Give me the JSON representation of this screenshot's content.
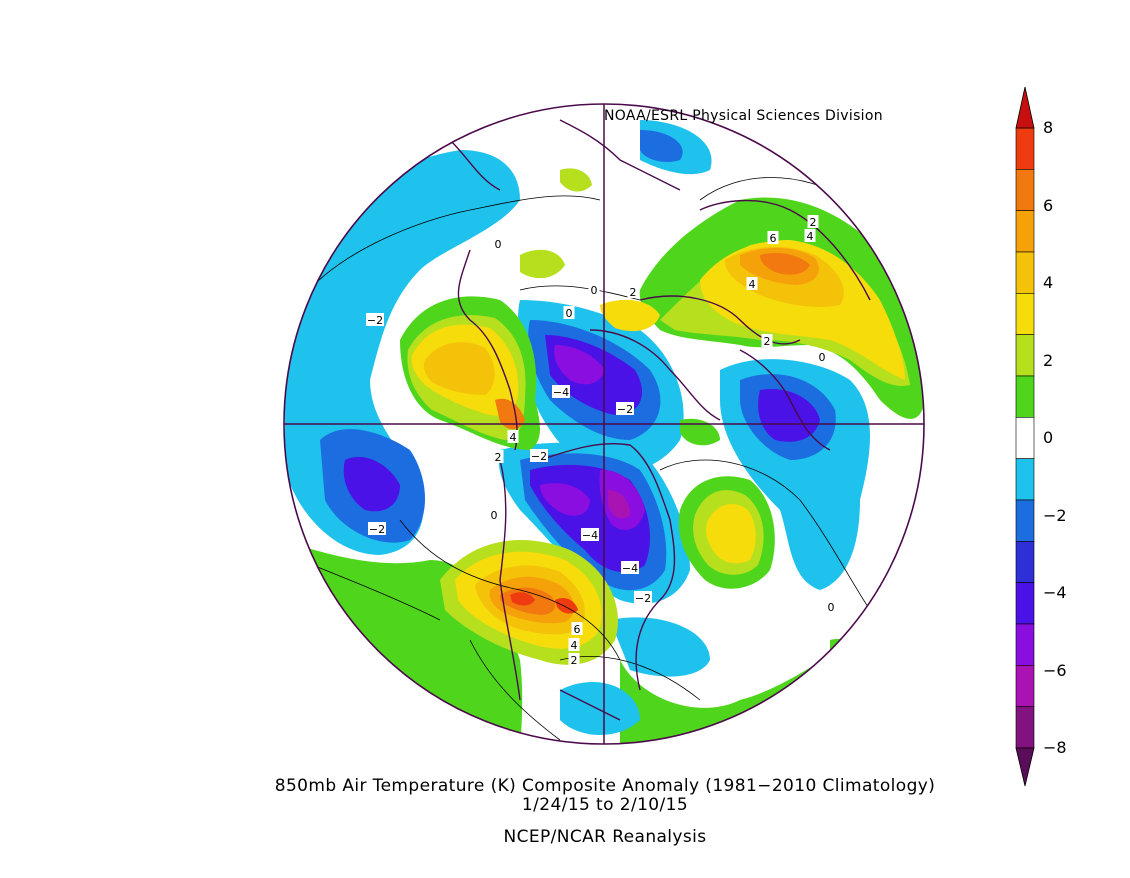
{
  "credit": "NOAA/ESRL Physical Sciences Division",
  "caption": {
    "title": "850mb Air Temperature (K) Composite Anomaly (1981−2010 Climatology)",
    "dates": "1/24/15   to 2/10/15",
    "source": "NCEP/NCAR Reanalysis"
  },
  "colorbar": {
    "labels": [
      "8",
      "6",
      "4",
      "2",
      "0",
      "−2",
      "−4",
      "−6",
      "−8"
    ],
    "levels": [
      -8,
      -7,
      -6,
      -5,
      -4,
      -3,
      -2,
      -1,
      1,
      2,
      3,
      4,
      5,
      6,
      7,
      8
    ],
    "colors": {
      "below_-8": "#5a0e5a",
      "-8_-7": "#82127f",
      "-7_-6": "#a912b3",
      "-6_-5": "#8b0ee0",
      "-5_-4": "#4a12e6",
      "-4_-3": "#2f2fd6",
      "-3_-2": "#1c6ee0",
      "-2_-1": "#1ec2ec",
      "-1_1": "#ffffff",
      "1_2": "#4fd61c",
      "2_3": "#b6e01e",
      "3_4": "#f5dc0a",
      "4_5": "#f5c20a",
      "5_6": "#f5a20a",
      "6_7": "#f27810",
      "7_8": "#ee3b10",
      "above_8": "#c80f0f"
    }
  },
  "contour_labels": [
    {
      "text": "2"
    },
    {
      "text": "4"
    },
    {
      "text": "6"
    },
    {
      "text": "4"
    },
    {
      "text": "2"
    },
    {
      "text": "0"
    },
    {
      "text": "0"
    },
    {
      "text": "2"
    },
    {
      "text": "0"
    },
    {
      "text": "0"
    },
    {
      "text": "−2"
    },
    {
      "text": "−4"
    },
    {
      "text": "−2"
    },
    {
      "text": "4"
    },
    {
      "text": "2"
    },
    {
      "text": "−2"
    },
    {
      "text": "0"
    },
    {
      "text": "−4"
    },
    {
      "text": "−4"
    },
    {
      "text": "−2"
    },
    {
      "text": "−2"
    },
    {
      "text": "6"
    },
    {
      "text": "4"
    },
    {
      "text": "2"
    },
    {
      "text": "0"
    }
  ]
}
